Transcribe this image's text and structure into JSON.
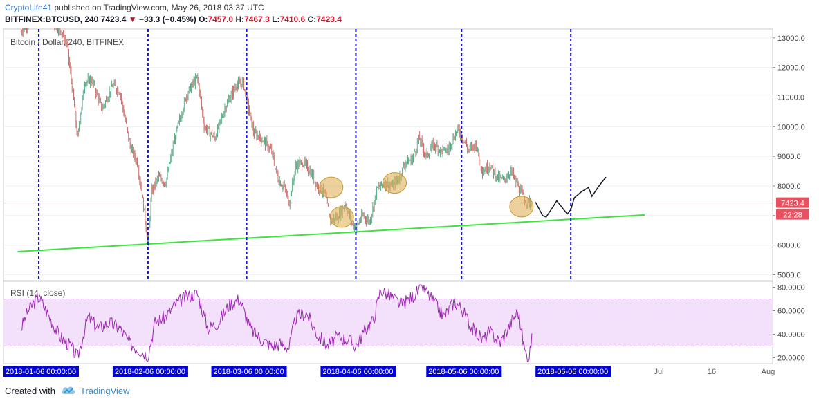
{
  "header": {
    "author": "CryptoLife41",
    "published_text": " published on TradingView.com, May 26, 2018 03:37 UTC",
    "symbol": "BITFINEX:BTCUSD, 240",
    "last": "7423.4",
    "change": "−33.3 (−0.45%)",
    "o_label": "O:",
    "open": "7457.0",
    "h_label": "H:",
    "high": "7467.3",
    "l_label": "L:",
    "low": "7410.6",
    "c_label": "C:",
    "close": "7423.4"
  },
  "main_pane": {
    "title": "Bitcoin / Dollar, 240, BITFINEX",
    "price_label": "7423.4",
    "countdown_label": "22:28"
  },
  "rsi_pane": {
    "title": "RSI (14, close)"
  },
  "footer": {
    "created_with": "Created with",
    "brand": "TradingView"
  },
  "colors": {
    "price_line": "#f7a6ae",
    "price_badge": "#e8515f",
    "trendline": "#39e639",
    "cycle_line": "#1010e0",
    "rsi_line": "#9c27b0",
    "rsi_band": "#f3e0fb",
    "highlight_fill": "#e0b35a",
    "candle_up": "#3d9970",
    "candle_down": "#c0504d",
    "date_badge": "#0000d8"
  },
  "chart_data": [
    {
      "type": "candlestick",
      "title": "Bitcoin / Dollar, 240, BITFINEX",
      "y_ticks": [
        13000,
        12000,
        11000,
        10000,
        9000,
        8000,
        7000,
        6000,
        5000
      ],
      "y_tick_labels": [
        "13000.0",
        "12000.0",
        "11000.0",
        "10000.0",
        "9000.0",
        "8000.0",
        "7000.0",
        "6000.0",
        "5000.0"
      ],
      "ylim": [
        4800,
        13300
      ],
      "x_labels": [
        "2018-01-06 00:00:00",
        "2018-02-06 00:00:00",
        "2018-03-06 00:00:00",
        "2018-04-06 00:00:00",
        "2018-05-06 00:00:00",
        "2018-06-06 00:00:00",
        "Jul",
        "16",
        "Aug"
      ],
      "cycle_dates": [
        "2018-01-06",
        "2018-02-06",
        "2018-03-06",
        "2018-04-06",
        "2018-05-06",
        "2018-06-06"
      ],
      "last_price": 7423.4,
      "price_path": [
        [
          "2018-01-01",
          13200
        ],
        [
          "2018-01-03",
          13500
        ],
        [
          "2018-01-06",
          13800
        ],
        [
          "2018-01-09",
          13600
        ],
        [
          "2018-01-12",
          13300
        ],
        [
          "2018-01-14",
          12800
        ],
        [
          "2018-01-16",
          10800
        ],
        [
          "2018-01-17",
          9600
        ],
        [
          "2018-01-19",
          11500
        ],
        [
          "2018-01-21",
          11600
        ],
        [
          "2018-01-24",
          10600
        ],
        [
          "2018-01-27",
          11400
        ],
        [
          "2018-01-29",
          11200
        ],
        [
          "2018-02-01",
          9300
        ],
        [
          "2018-02-03",
          8800
        ],
        [
          "2018-02-05",
          7100
        ],
        [
          "2018-02-06",
          6000
        ],
        [
          "2018-02-07",
          7800
        ],
        [
          "2018-02-09",
          8300
        ],
        [
          "2018-02-11",
          8100
        ],
        [
          "2018-02-14",
          9800
        ],
        [
          "2018-02-17",
          11100
        ],
        [
          "2018-02-20",
          11700
        ],
        [
          "2018-02-22",
          10000
        ],
        [
          "2018-02-25",
          9600
        ],
        [
          "2018-02-28",
          10700
        ],
        [
          "2018-03-03",
          11400
        ],
        [
          "2018-03-05",
          11500
        ],
        [
          "2018-03-08",
          9800
        ],
        [
          "2018-03-11",
          9500
        ],
        [
          "2018-03-13",
          9200
        ],
        [
          "2018-03-15",
          8200
        ],
        [
          "2018-03-17",
          7900
        ],
        [
          "2018-03-18",
          7400
        ],
        [
          "2018-03-20",
          8700
        ],
        [
          "2018-03-22",
          8800
        ],
        [
          "2018-03-24",
          8500
        ],
        [
          "2018-03-26",
          8000
        ],
        [
          "2018-03-28",
          7800
        ],
        [
          "2018-03-30",
          6800
        ],
        [
          "2018-04-01",
          7000
        ],
        [
          "2018-04-03",
          7400
        ],
        [
          "2018-04-05",
          6700
        ],
        [
          "2018-04-06",
          6600
        ],
        [
          "2018-04-08",
          7000
        ],
        [
          "2018-04-10",
          6800
        ],
        [
          "2018-04-12",
          7900
        ],
        [
          "2018-04-14",
          8100
        ],
        [
          "2018-04-16",
          8000
        ],
        [
          "2018-04-18",
          8200
        ],
        [
          "2018-04-20",
          8800
        ],
        [
          "2018-04-22",
          8900
        ],
        [
          "2018-04-24",
          9600
        ],
        [
          "2018-04-26",
          9000
        ],
        [
          "2018-04-28",
          9400
        ],
        [
          "2018-04-30",
          9200
        ],
        [
          "2018-05-02",
          9200
        ],
        [
          "2018-05-04",
          9700
        ],
        [
          "2018-05-05",
          9900
        ],
        [
          "2018-05-06",
          9700
        ],
        [
          "2018-05-08",
          9200
        ],
        [
          "2018-05-10",
          9400
        ],
        [
          "2018-05-12",
          8500
        ],
        [
          "2018-05-14",
          8700
        ],
        [
          "2018-05-16",
          8300
        ],
        [
          "2018-05-18",
          8200
        ],
        [
          "2018-05-20",
          8500
        ],
        [
          "2018-05-22",
          8000
        ],
        [
          "2018-05-24",
          7500
        ],
        [
          "2018-05-26",
          7423.4
        ]
      ],
      "projection": [
        [
          "2018-05-27",
          7450
        ],
        [
          "2018-05-29",
          7000
        ],
        [
          "2018-05-30",
          6950
        ],
        [
          "2018-06-01",
          7300
        ],
        [
          "2018-06-02",
          7500
        ],
        [
          "2018-06-04",
          7200
        ],
        [
          "2018-06-05",
          7050
        ],
        [
          "2018-06-06",
          7200
        ],
        [
          "2018-06-07",
          7600
        ],
        [
          "2018-06-09",
          7800
        ],
        [
          "2018-06-11",
          7950
        ],
        [
          "2018-06-12",
          7650
        ],
        [
          "2018-06-14",
          8000
        ],
        [
          "2018-06-16",
          8300
        ]
      ],
      "trendline": [
        [
          "2017-12-31",
          5780
        ],
        [
          "2018-06-27",
          7020
        ]
      ],
      "highlighted_regions": [
        [
          "2018-03-30",
          7950
        ],
        [
          "2018-04-02",
          6950
        ],
        [
          "2018-04-17",
          8100
        ],
        [
          "2018-05-23",
          7300
        ]
      ]
    },
    {
      "type": "line",
      "title": "RSI (14, close)",
      "y_ticks": [
        80,
        60,
        40,
        20
      ],
      "y_tick_labels": [
        "80.0000",
        "60.0000",
        "40.0000",
        "20.0000"
      ],
      "ylim": [
        15,
        85
      ],
      "band": [
        30,
        70
      ],
      "series": [
        {
          "values": [
            [
              "2018-01-01",
              45
            ],
            [
              "2018-01-03",
              60
            ],
            [
              "2018-01-06",
              72
            ],
            [
              "2018-01-09",
              55
            ],
            [
              "2018-01-12",
              38
            ],
            [
              "2018-01-15",
              30
            ],
            [
              "2018-01-17",
              20
            ],
            [
              "2018-01-20",
              55
            ],
            [
              "2018-01-23",
              45
            ],
            [
              "2018-01-26",
              50
            ],
            [
              "2018-01-29",
              45
            ],
            [
              "2018-02-01",
              32
            ],
            [
              "2018-02-03",
              28
            ],
            [
              "2018-02-06",
              22
            ],
            [
              "2018-02-08",
              50
            ],
            [
              "2018-02-11",
              55
            ],
            [
              "2018-02-14",
              66
            ],
            [
              "2018-02-17",
              72
            ],
            [
              "2018-02-20",
              75
            ],
            [
              "2018-02-23",
              45
            ],
            [
              "2018-02-26",
              50
            ],
            [
              "2018-03-01",
              65
            ],
            [
              "2018-03-04",
              70
            ],
            [
              "2018-03-07",
              45
            ],
            [
              "2018-03-10",
              36
            ],
            [
              "2018-03-13",
              30
            ],
            [
              "2018-03-16",
              32
            ],
            [
              "2018-03-18",
              28
            ],
            [
              "2018-03-20",
              55
            ],
            [
              "2018-03-23",
              58
            ],
            [
              "2018-03-26",
              40
            ],
            [
              "2018-03-29",
              30
            ],
            [
              "2018-04-01",
              38
            ],
            [
              "2018-04-04",
              35
            ],
            [
              "2018-04-06",
              30
            ],
            [
              "2018-04-09",
              45
            ],
            [
              "2018-04-11",
              52
            ],
            [
              "2018-04-13",
              78
            ],
            [
              "2018-04-16",
              72
            ],
            [
              "2018-04-19",
              65
            ],
            [
              "2018-04-22",
              72
            ],
            [
              "2018-04-25",
              80
            ],
            [
              "2018-04-28",
              68
            ],
            [
              "2018-05-01",
              55
            ],
            [
              "2018-05-04",
              68
            ],
            [
              "2018-05-06",
              62
            ],
            [
              "2018-05-09",
              45
            ],
            [
              "2018-05-12",
              35
            ],
            [
              "2018-05-14",
              42
            ],
            [
              "2018-05-17",
              33
            ],
            [
              "2018-05-20",
              50
            ],
            [
              "2018-05-22",
              60
            ],
            [
              "2018-05-24",
              25
            ],
            [
              "2018-05-25",
              20
            ],
            [
              "2018-05-26",
              36
            ]
          ]
        }
      ]
    }
  ]
}
